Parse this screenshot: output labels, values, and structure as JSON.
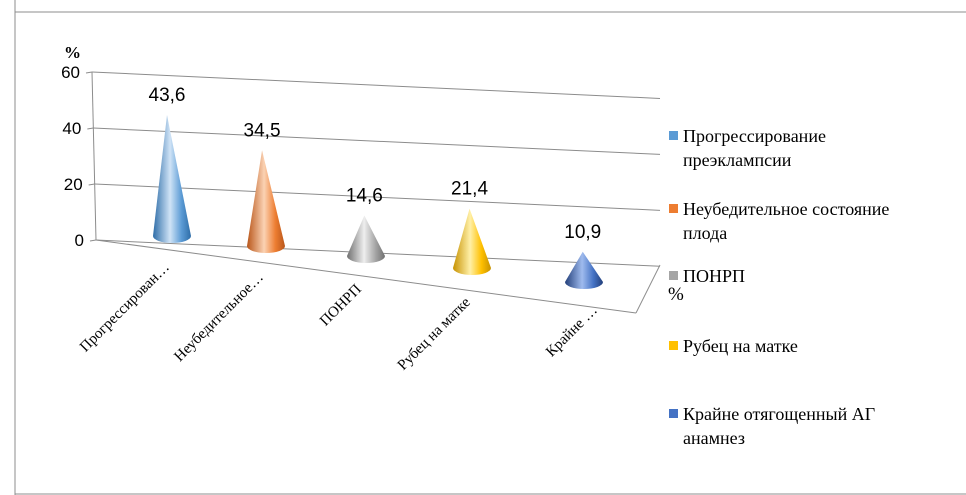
{
  "chart_data": {
    "type": "bar",
    "variant": "3d-cone",
    "categories": [
      "Прогрессирован…",
      "Неубедительное…",
      "ПОНРП",
      "Рубец на матке",
      "Крайне …"
    ],
    "series": [
      {
        "values": [
          43.6,
          34.5,
          14.6,
          21.4,
          10.9
        ]
      }
    ],
    "data_labels": [
      "43,6",
      "34,5",
      "14,6",
      "21,4",
      "10,9"
    ],
    "ylabel": "%",
    "depth_label": "%",
    "ylim": [
      0,
      60
    ],
    "yticks": [
      "0",
      "20",
      "40",
      "60"
    ],
    "grid": true,
    "legend": {
      "position": "right",
      "entries": [
        {
          "lines": [
            "Прогрессирование",
            "преэклампсии"
          ],
          "color": "#5b9bd5"
        },
        {
          "lines": [
            "Неубедительное состояние",
            "плода"
          ],
          "color": "#ed7d31"
        },
        {
          "lines": [
            "ПОНРП"
          ],
          "color": "#a5a5a5"
        },
        {
          "lines": [
            "Рубец на матке"
          ],
          "color": "#ffc000"
        },
        {
          "lines": [
            "Крайне отягощенный АГ",
            "анамнез"
          ],
          "color": "#4472c4"
        }
      ]
    },
    "colors": [
      "#5b9bd5",
      "#ed7d31",
      "#a5a5a5",
      "#ffc000",
      "#4472c4"
    ],
    "highlight_colors": [
      "#cfe3f6",
      "#fbd2b3",
      "#eeeeee",
      "#fff0a8",
      "#9fbbee"
    ],
    "shadow_colors": [
      "#2e6da8",
      "#b8561a",
      "#707070",
      "#c79200",
      "#233f7a"
    ]
  }
}
